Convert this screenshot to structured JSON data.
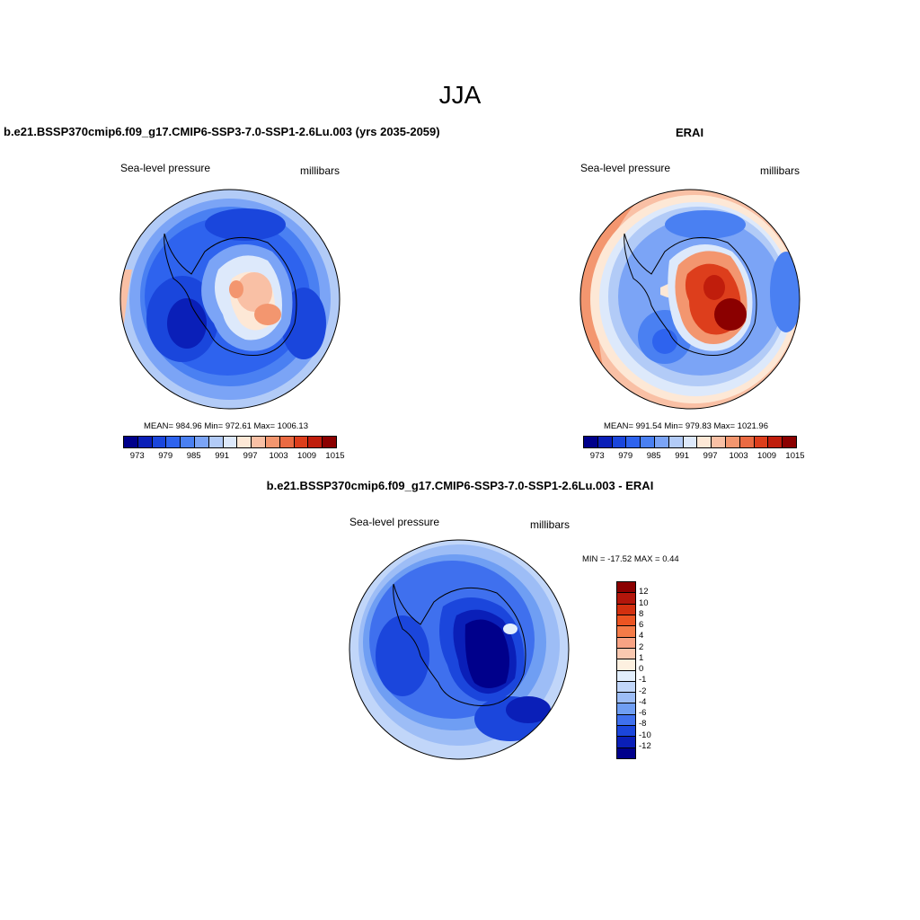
{
  "title": "JJA",
  "panels": {
    "left": {
      "title": "b.e21.BSSP370cmip6.f09_g17.CMIP6-SSP3-7.0-SSP1-2.6Lu.003 (yrs 2035-2059)",
      "variable": "Sea-level pressure",
      "units": "millibars",
      "stats": "MEAN= 984.96  Min= 972.61  Max= 1006.13",
      "colorbar_ticks": [
        "973",
        "979",
        "985",
        "991",
        "997",
        "1003",
        "1009",
        "1015"
      ]
    },
    "right": {
      "title": "ERAI",
      "variable": "Sea-level pressure",
      "units": "millibars",
      "stats": "MEAN= 991.54  Min= 979.83  Max= 1021.96",
      "colorbar_ticks": [
        "973",
        "979",
        "985",
        "991",
        "997",
        "1003",
        "1009",
        "1015"
      ]
    },
    "bottom": {
      "title": "b.e21.BSSP370cmip6.f09_g17.CMIP6-SSP3-7.0-SSP1-2.6Lu.003 - ERAI",
      "variable": "Sea-level pressure",
      "units": "millibars",
      "stats": "MIN = -17.52 MAX =   0.44",
      "colorbar_ticks": [
        "12",
        "10",
        "8",
        "6",
        "4",
        "2",
        "1",
        "0",
        "-1",
        "-2",
        "-4",
        "-6",
        "-8",
        "-10",
        "-12"
      ]
    }
  },
  "colors": {
    "abs_palette": [
      "#00008b",
      "#0a1fb8",
      "#1a46dc",
      "#2e63ee",
      "#4a80f2",
      "#7ba4f6",
      "#b2cbf7",
      "#dde9fb",
      "#fde8d6",
      "#f9c0a5",
      "#f3966f",
      "#ea6a42",
      "#dd3e1c",
      "#c01d0c",
      "#8b0000"
    ],
    "diff_palette": [
      "#8b0000",
      "#b3160b",
      "#d3300f",
      "#ec5422",
      "#f47b48",
      "#f8a384",
      "#f9c8b0",
      "#fdf0e0",
      "#e2eefc",
      "#c1d6f9",
      "#9dbdf6",
      "#6f9ef3",
      "#3f70ee",
      "#1b46dc",
      "#0a1fb8",
      "#00008b"
    ]
  }
}
